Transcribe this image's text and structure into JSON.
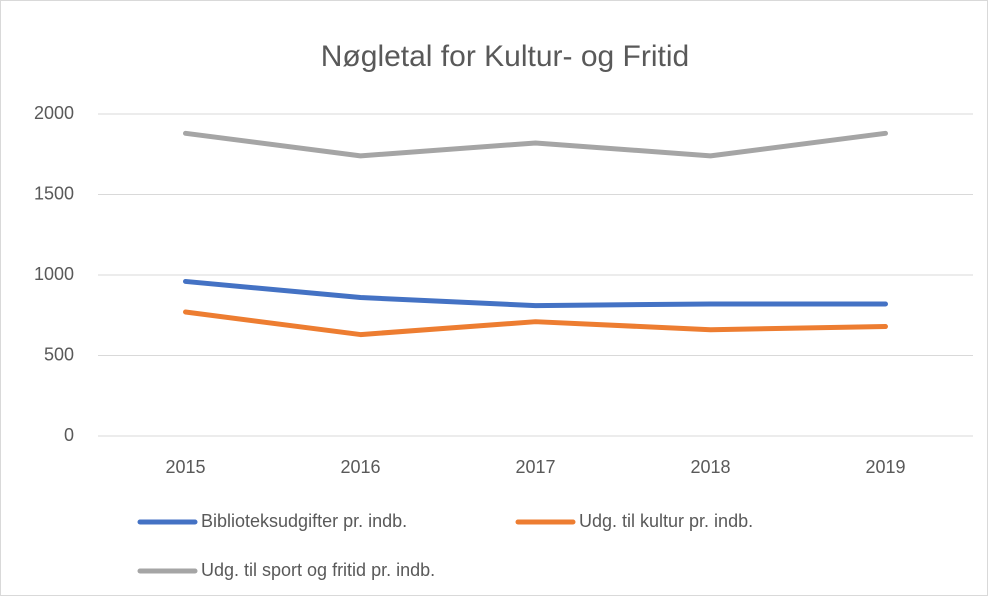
{
  "chart_data": {
    "type": "line",
    "title": "Nøgletal for Kultur- og Fritid",
    "categories": [
      "2015",
      "2016",
      "2017",
      "2018",
      "2019"
    ],
    "series": [
      {
        "name": "Biblioteksudgifter pr. indb.",
        "color": "#4472c4",
        "values": [
          960,
          860,
          810,
          820,
          820
        ]
      },
      {
        "name": "Udg. til kultur pr. indb.",
        "color": "#ed7d31",
        "values": [
          770,
          630,
          710,
          660,
          680
        ]
      },
      {
        "name": "Udg. til sport og fritid pr. indb.",
        "color": "#a5a5a5",
        "values": [
          1880,
          1740,
          1820,
          1740,
          1880
        ]
      }
    ],
    "ylim": [
      0,
      2000
    ],
    "yticks": [
      0,
      500,
      1000,
      1500,
      2000
    ],
    "grid": true,
    "legend": "bottom"
  }
}
